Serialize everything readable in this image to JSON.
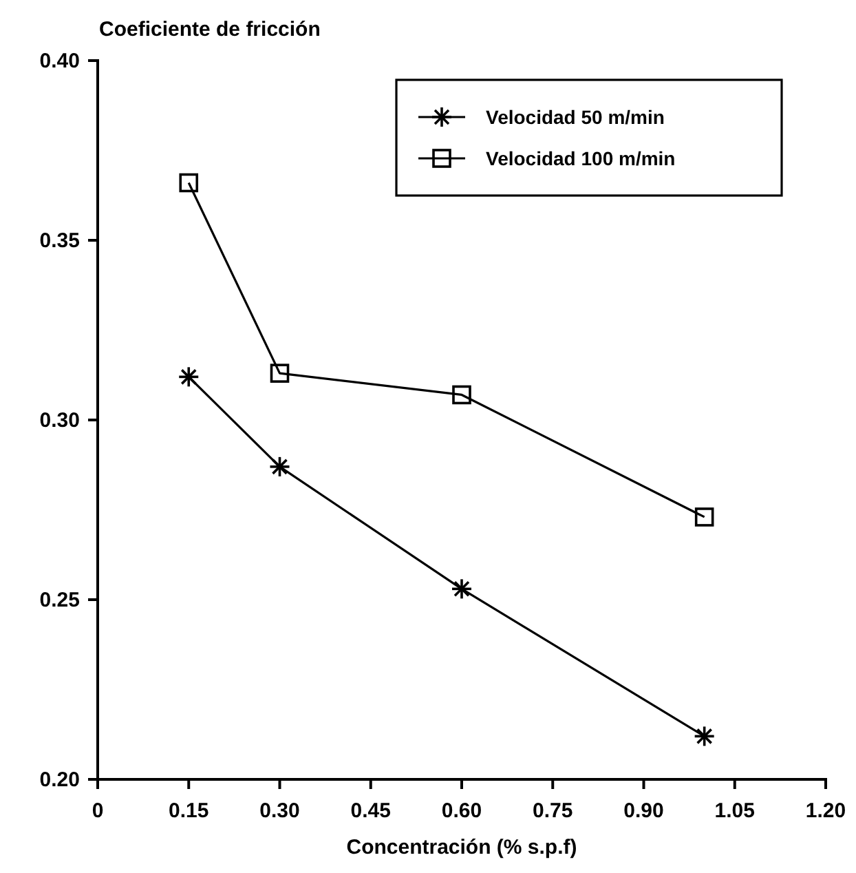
{
  "chart_data": {
    "type": "line",
    "title": "Coeficiente de fricción",
    "xlabel": "Concentración (% s.p.f)",
    "x": [
      0.15,
      0.3,
      0.6,
      1.0
    ],
    "series": [
      {
        "name": "Velocidad 50 m/min",
        "color": "#000000",
        "marker": "cross",
        "values": [
          0.312,
          0.287,
          0.253,
          0.212
        ]
      },
      {
        "name": "Velocidad 100 m/min",
        "color": "#000000",
        "marker": "square",
        "values": [
          0.366,
          0.313,
          0.307,
          0.273
        ]
      }
    ],
    "xlim": [
      0,
      1.2
    ],
    "xticks": [
      0,
      {
        "value": 0.15,
        "label": "0.15"
      },
      {
        "value": 0.3,
        "label": "0.30"
      },
      {
        "value": 0.45,
        "label": "0.45"
      },
      {
        "value": 0.6,
        "label": "0.60"
      },
      {
        "value": 0.75,
        "label": "0.75"
      },
      {
        "value": 0.9,
        "label": "0.90"
      },
      {
        "value": 1.05,
        "label": "1.05"
      },
      {
        "value": 1.2,
        "label": "1.20"
      }
    ],
    "ylim": [
      0.2,
      0.4
    ],
    "yticks": [
      {
        "value": 0.2,
        "label": "0.20"
      },
      0.25,
      {
        "value": 0.3,
        "label": "0.30"
      },
      0.35,
      {
        "value": 0.4,
        "label": "0.40"
      }
    ],
    "grid": false,
    "legend": "top right",
    "line_style": "solid"
  }
}
